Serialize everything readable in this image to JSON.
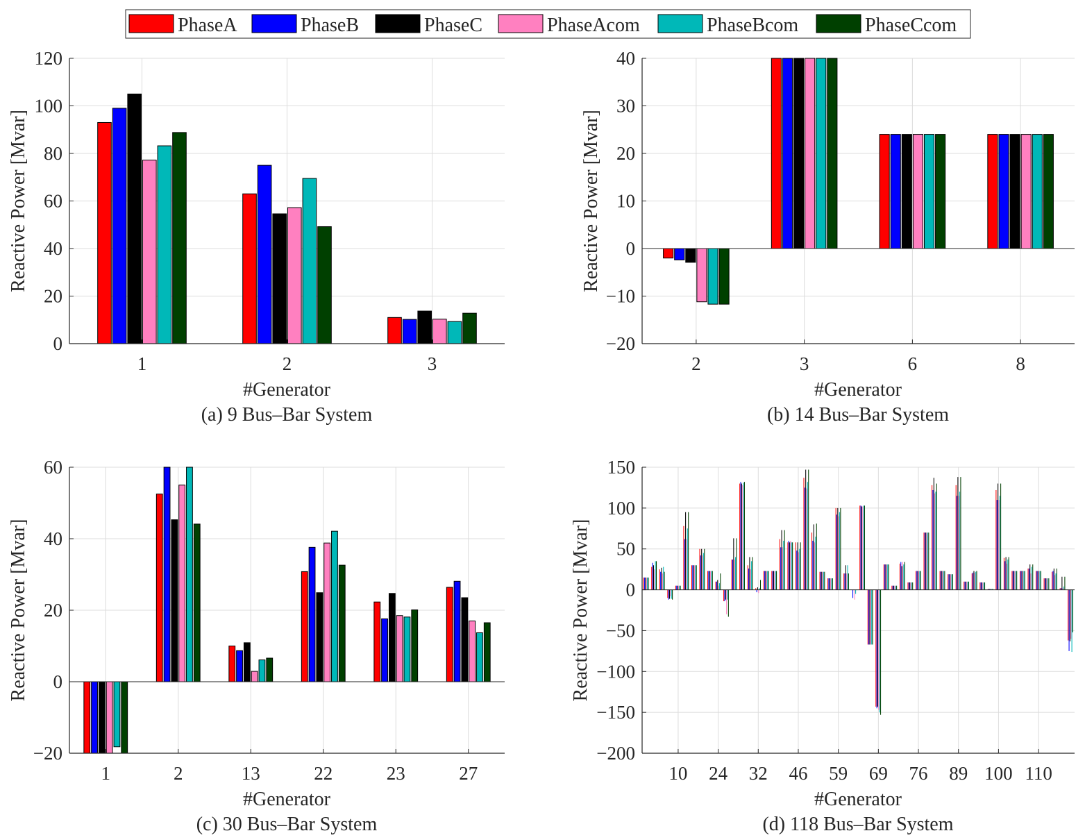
{
  "legend": [
    {
      "name": "PhaseA",
      "color": "#ff0000"
    },
    {
      "name": "PhaseB",
      "color": "#0000ff"
    },
    {
      "name": "PhaseC",
      "color": "#000000"
    },
    {
      "name": "PhaseAcom",
      "color": "#ff80c0"
    },
    {
      "name": "PhaseBcom",
      "color": "#00b8b8"
    },
    {
      "name": "PhaseCcom",
      "color": "#004000"
    }
  ],
  "chart_data": [
    {
      "type": "bar",
      "caption": "(a) 9 Bus–Bar System",
      "xlabel": "#Generator",
      "ylabel": "Reactive Power [Mvar]",
      "categories": [
        "1",
        "2",
        "3"
      ],
      "ylim": [
        0,
        120
      ],
      "yticks": [
        "0",
        "20",
        "40",
        "60",
        "80",
        "100",
        "120"
      ],
      "series": [
        {
          "name": "PhaseA",
          "values": [
            93,
            63,
            11
          ]
        },
        {
          "name": "PhaseB",
          "values": [
            99,
            75,
            10.2
          ]
        },
        {
          "name": "PhaseC",
          "values": [
            105,
            54.6,
            13.7
          ]
        },
        {
          "name": "PhaseAcom",
          "values": [
            77.2,
            57.2,
            10.3
          ]
        },
        {
          "name": "PhaseBcom",
          "values": [
            83.2,
            69.5,
            9.3
          ]
        },
        {
          "name": "PhaseCcom",
          "values": [
            88.8,
            49.2,
            12.8
          ]
        }
      ]
    },
    {
      "type": "bar",
      "caption": "(b) 14 Bus–Bar System",
      "xlabel": "#Generator",
      "ylabel": "Reactive Power [Mvar]",
      "categories": [
        "2",
        "3",
        "6",
        "8"
      ],
      "ylim": [
        -20,
        40
      ],
      "yticks": [
        "−20",
        "−10",
        "0",
        "10",
        "20",
        "30",
        "40"
      ],
      "series": [
        {
          "name": "PhaseA",
          "values": [
            -2,
            40,
            24,
            24
          ]
        },
        {
          "name": "PhaseB",
          "values": [
            -2.4,
            40,
            24,
            24
          ]
        },
        {
          "name": "PhaseC",
          "values": [
            -2.9,
            40,
            24,
            24
          ]
        },
        {
          "name": "PhaseAcom",
          "values": [
            -11.2,
            40,
            24,
            24
          ]
        },
        {
          "name": "PhaseBcom",
          "values": [
            -11.7,
            40,
            24,
            24
          ]
        },
        {
          "name": "PhaseCcom",
          "values": [
            -11.7,
            40,
            24,
            24
          ]
        }
      ]
    },
    {
      "type": "bar",
      "caption": "(c) 30 Bus–Bar System",
      "xlabel": "#Generator",
      "ylabel": "Reactive Power [Mvar]",
      "categories": [
        "1",
        "2",
        "13",
        "22",
        "23",
        "27"
      ],
      "ylim": [
        -20,
        60
      ],
      "yticks": [
        "−20",
        "0",
        "20",
        "40",
        "60"
      ],
      "series": [
        {
          "name": "PhaseA",
          "values": [
            -20,
            52.5,
            10,
            30.8,
            22.3,
            26.4
          ]
        },
        {
          "name": "PhaseB",
          "values": [
            -20,
            60,
            8.7,
            37.6,
            17.6,
            28.1
          ]
        },
        {
          "name": "PhaseC",
          "values": [
            -20,
            45.3,
            10.9,
            24.9,
            24.7,
            23.5
          ]
        },
        {
          "name": "PhaseAcom",
          "values": [
            -20,
            55,
            2.9,
            38.8,
            18.5,
            17
          ]
        },
        {
          "name": "PhaseBcom",
          "values": [
            -18.2,
            60,
            6.1,
            42.1,
            18.1,
            13.7
          ]
        },
        {
          "name": "PhaseCcom",
          "values": [
            -20,
            44.1,
            6.6,
            32.6,
            20.1,
            16.5
          ]
        }
      ]
    },
    {
      "type": "bar",
      "caption": "(d) 118 Bus–Bar System",
      "xlabel": "#Generator",
      "ylabel": "Reactive Power [Mvar]",
      "ylim": [
        -200,
        150
      ],
      "yticks": [
        "−200",
        "−150",
        "−100",
        "−50",
        "0",
        "50",
        "100",
        "150"
      ],
      "xticks": [
        {
          "label": "10",
          "index": 4
        },
        {
          "label": "24",
          "index": 9
        },
        {
          "label": "32",
          "index": 14
        },
        {
          "label": "46",
          "index": 19
        },
        {
          "label": "59",
          "index": 24
        },
        {
          "label": "69",
          "index": 29
        },
        {
          "label": "76",
          "index": 34
        },
        {
          "label": "89",
          "index": 39
        },
        {
          "label": "100",
          "index": 44
        },
        {
          "label": "110",
          "index": 49
        }
      ],
      "n_groups": 54,
      "groups": [
        [
          15,
          15,
          15,
          15,
          15,
          15
        ],
        [
          28,
          33,
          30,
          25,
          35,
          35
        ],
        [
          25,
          22,
          27,
          20,
          28,
          22
        ],
        [
          -10,
          -12,
          -11,
          -8,
          -11,
          -12
        ],
        [
          5,
          5,
          5,
          5,
          5,
          5
        ],
        [
          78,
          62,
          95,
          62,
          75,
          95
        ],
        [
          30,
          30,
          30,
          30,
          30,
          30
        ],
        [
          50,
          42,
          50,
          42,
          45,
          50
        ],
        [
          23,
          23,
          23,
          23,
          23,
          23
        ],
        [
          10,
          10,
          12,
          5,
          8,
          20
        ],
        [
          -14,
          -14,
          -12,
          -30,
          -12,
          -33
        ],
        [
          37,
          37,
          63,
          37,
          40,
          63
        ],
        [
          130,
          132,
          130,
          128,
          131,
          132
        ],
        [
          30,
          26,
          40,
          25,
          35,
          40
        ],
        [
          2,
          -3,
          3,
          -4,
          2,
          12
        ],
        [
          23,
          23,
          23,
          23,
          23,
          23
        ],
        [
          23,
          23,
          23,
          23,
          23,
          23
        ],
        [
          62,
          52,
          73,
          52,
          60,
          73
        ],
        [
          58,
          60,
          58,
          60,
          58,
          58
        ],
        [
          58,
          48,
          58,
          46,
          50,
          58
        ],
        [
          137,
          125,
          147,
          124,
          132,
          147
        ],
        [
          70,
          60,
          80,
          58,
          65,
          81
        ],
        [
          22,
          22,
          22,
          22,
          22,
          22
        ],
        [
          14,
          14,
          14,
          14,
          14,
          14
        ],
        [
          100,
          92,
          100,
          90,
          95,
          100
        ],
        [
          20,
          20,
          30,
          20,
          30,
          20
        ],
        [
          0,
          -10,
          0,
          -12,
          -5,
          0
        ],
        [
          103,
          103,
          102,
          102,
          103,
          103
        ],
        [
          -67,
          -67,
          -67,
          -67,
          -67,
          -67
        ],
        [
          -143,
          -145,
          -143,
          -147,
          -150,
          -153
        ],
        [
          31,
          31,
          31,
          31,
          31,
          31
        ],
        [
          5,
          5,
          5,
          5,
          5,
          5
        ],
        [
          32,
          34,
          29,
          34,
          31,
          34
        ],
        [
          9,
          9,
          9,
          9,
          9,
          9
        ],
        [
          23,
          23,
          23,
          23,
          23,
          23
        ],
        [
          70,
          70,
          70,
          70,
          70,
          70
        ],
        [
          128,
          122,
          137,
          118,
          120,
          130
        ],
        [
          23,
          23,
          23,
          23,
          23,
          23
        ],
        [
          19,
          19,
          19,
          19,
          19,
          19
        ],
        [
          128,
          115,
          138,
          115,
          120,
          138
        ],
        [
          10,
          10,
          10,
          10,
          10,
          10
        ],
        [
          20,
          21,
          23,
          21,
          22,
          23
        ],
        [
          9,
          9,
          9,
          9,
          9,
          9
        ],
        [
          1,
          1,
          1,
          1,
          1,
          1
        ],
        [
          122,
          110,
          130,
          110,
          115,
          130
        ],
        [
          39,
          35,
          40,
          32,
          37,
          40
        ],
        [
          23,
          23,
          23,
          23,
          23,
          23
        ],
        [
          23,
          23,
          23,
          23,
          23,
          23
        ],
        [
          26,
          26,
          31,
          20,
          28,
          31
        ],
        [
          23,
          23,
          23,
          23,
          23,
          23
        ],
        [
          14,
          14,
          14,
          14,
          14,
          14
        ],
        [
          22,
          23,
          26,
          18,
          20,
          26
        ],
        [
          2,
          2,
          16,
          2,
          4,
          16
        ],
        [
          -62,
          -75,
          -63,
          -60,
          -76,
          -52
        ]
      ]
    }
  ]
}
